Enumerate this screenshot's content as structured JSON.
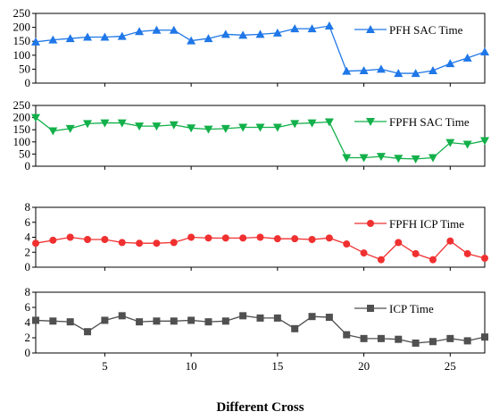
{
  "chart_data": [
    {
      "type": "line",
      "xlim": [
        1,
        27
      ],
      "ylim": [
        0,
        250
      ],
      "yticks": [
        0,
        50,
        100,
        150,
        200,
        250
      ],
      "legend_position": "top-right",
      "series": [
        {
          "name": "PFH SAC Time",
          "color": "#1f77e8",
          "marker": "triangle-up",
          "x": [
            1,
            2,
            3,
            4,
            5,
            6,
            7,
            8,
            9,
            10,
            11,
            12,
            13,
            14,
            15,
            16,
            17,
            18,
            19,
            20,
            21,
            22,
            23,
            24,
            25,
            26,
            27
          ],
          "values": [
            148,
            155,
            160,
            165,
            165,
            168,
            185,
            190,
            190,
            152,
            160,
            175,
            172,
            175,
            180,
            195,
            195,
            205,
            43,
            45,
            50,
            35,
            35,
            45,
            70,
            90,
            112
          ]
        }
      ]
    },
    {
      "type": "line",
      "xlim": [
        1,
        27
      ],
      "ylim": [
        0,
        250
      ],
      "yticks": [
        0,
        50,
        100,
        150,
        200,
        250
      ],
      "legend_position": "top-right",
      "series": [
        {
          "name": "FPFH SAC Time",
          "color": "#12b04a",
          "marker": "triangle-down",
          "x": [
            1,
            2,
            3,
            4,
            5,
            6,
            7,
            8,
            9,
            10,
            11,
            12,
            13,
            14,
            15,
            16,
            17,
            18,
            19,
            20,
            21,
            22,
            23,
            24,
            25,
            26,
            27
          ],
          "values": [
            200,
            145,
            155,
            175,
            178,
            178,
            165,
            165,
            170,
            157,
            152,
            155,
            160,
            160,
            160,
            175,
            178,
            182,
            35,
            35,
            40,
            32,
            30,
            35,
            97,
            90,
            105
          ]
        }
      ]
    },
    {
      "type": "line",
      "xlim": [
        1,
        27
      ],
      "ylim": [
        0,
        8
      ],
      "yticks": [
        0,
        2,
        4,
        6,
        8
      ],
      "legend_position": "top-right",
      "series": [
        {
          "name": "FPFH ICP Time",
          "color": "#f03030",
          "marker": "circle",
          "x": [
            1,
            2,
            3,
            4,
            5,
            6,
            7,
            8,
            9,
            10,
            11,
            12,
            13,
            14,
            15,
            16,
            17,
            18,
            19,
            20,
            21,
            22,
            23,
            24,
            25,
            26,
            27
          ],
          "values": [
            3.2,
            3.6,
            4.0,
            3.7,
            3.7,
            3.3,
            3.2,
            3.2,
            3.3,
            4.0,
            3.9,
            3.9,
            3.9,
            4.0,
            3.8,
            3.8,
            3.7,
            3.9,
            3.1,
            1.9,
            1.0,
            3.3,
            1.8,
            1.0,
            3.5,
            1.8,
            1.2
          ]
        }
      ]
    },
    {
      "type": "line",
      "xlim": [
        1,
        27
      ],
      "ylim": [
        0,
        8
      ],
      "yticks": [
        0,
        2,
        4,
        6,
        8
      ],
      "xticks": [
        5,
        10,
        15,
        20,
        25
      ],
      "legend_position": "top-right",
      "xlabel": "Different Cross",
      "series": [
        {
          "name": "ICP Time",
          "color": "#505050",
          "marker": "square",
          "x": [
            1,
            2,
            3,
            4,
            5,
            6,
            7,
            8,
            9,
            10,
            11,
            12,
            13,
            14,
            15,
            16,
            17,
            18,
            19,
            20,
            21,
            22,
            23,
            24,
            25,
            26,
            27
          ],
          "values": [
            4.3,
            4.2,
            4.1,
            2.8,
            4.3,
            4.9,
            4.1,
            4.2,
            4.2,
            4.3,
            4.1,
            4.2,
            4.9,
            4.6,
            4.6,
            3.2,
            4.8,
            4.7,
            2.4,
            1.9,
            1.9,
            1.8,
            1.3,
            1.5,
            1.9,
            1.6,
            2.1
          ]
        }
      ]
    }
  ]
}
